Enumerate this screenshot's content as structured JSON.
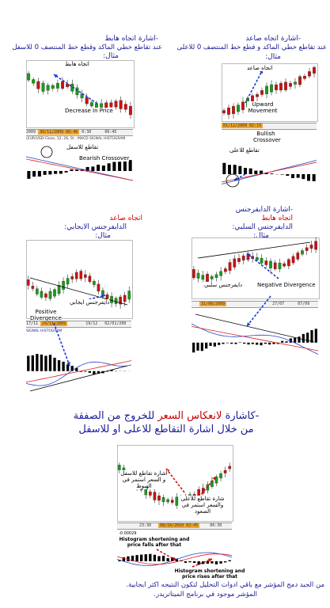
{
  "p1": {
    "title": "-اشارة اتجاه هابط",
    "desc": "عند تقاطع خطي الماكد وقطع خط المنتصف 0 للاسفل",
    "example": "مثال:",
    "trend_label": "اتجاه هابط",
    "decrease_label": "Decrease In Price",
    "cross_ar": "تقاطع للاسفل",
    "cross_en": "Bearish Crossover",
    "dates": {
      "d1": "2009",
      "d2": "30/11/2009 00:40",
      "d3": "0:30",
      "d4": "06:45"
    },
    "macd_header": "(EUR/USD:Close, 12, 26, 9) - MACD   SIGNAL  HISTOGRAM"
  },
  "p2": {
    "title": "-اشارة اتجاه صاعد",
    "desc": "عند تقاطع خطي الماكد و قطع خط المنتصف 0 للاعلى",
    "example": "مثال:",
    "trend_label": "اتجاه صاعد",
    "upward_label": "Upward Movement",
    "date": "01/12/2009 02:15",
    "bullish_label": "Bullish Crossover",
    "cross_ar": "تقاطع للاعلى"
  },
  "p3": {
    "title": "اتجاه صاعد",
    "subtitle": "الدايفرجنس الايجابي:",
    "example": "مثال:",
    "div_ar": "دايفرجنس ايجابي",
    "div_en": "Positive Divergence",
    "dates": {
      "d1": "17/11",
      "d2": "24/11/2009",
      "d3": "19/12",
      "d4": "02/01/200"
    },
    "header": "SIGNAL  HISTOGRAM"
  },
  "p4": {
    "title": "-اشارة الدايفرجنس",
    "subtitle": "اتجاه هابط",
    "desc": "الدايفرجنس السلبي:",
    "example": "مثال:",
    "div_ar": "دايفرجنس سلبي",
    "div_en": "Negative Divergence",
    "dates": {
      "d1": "31/08/2009",
      "d2": "27/07",
      "d3": "07/09"
    }
  },
  "p5": {
    "heading_pre": "-كاشارة ",
    "heading_red": "لانعكاس السعر",
    "heading_post": " للخروج من الصفقة",
    "heading2": "من خلال اشارة التقاطع للاعلى او للاسفل",
    "left_note": "اشارة تقاطع للاسفل و السعر استمر في الهبوط",
    "right_note": "شارة تقاطع للاعلى والسعر استمر في الصعود",
    "dates": {
      "d1": "23:30",
      "d2": "08/10/2010 02:45",
      "d3": "06:30"
    },
    "value": "-0.00029",
    "hist1": "Histogram shortening and price falls after that",
    "hist2": "Histogram shortening and price rises after that",
    "footer1": "من الجيد دمج المؤشر مع باقي ادوات التحليل لتكون النتيجه اكثر ايجابية.",
    "footer2": "المؤشر موجود في برنامج الميتاتريدر."
  }
}
